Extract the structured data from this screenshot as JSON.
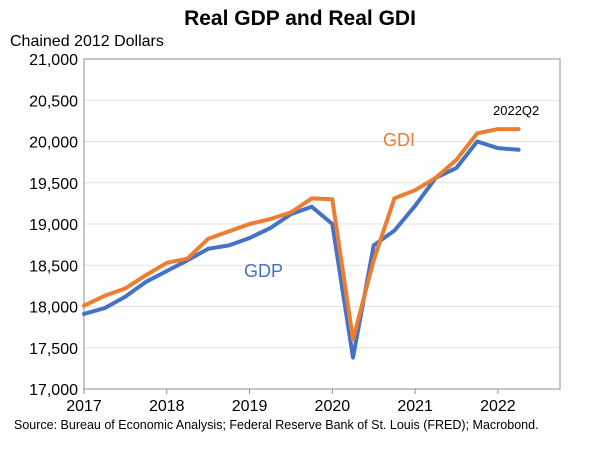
{
  "chart_data": {
    "type": "line",
    "title": "Real GDP and Real GDI",
    "ylabel": "Chained 2012 Dollars",
    "xlabel": "",
    "ylim": [
      17000,
      21000
    ],
    "xlim": [
      2017,
      2022.75
    ],
    "yticks": [
      "17,000",
      "17,500",
      "18,000",
      "18,500",
      "19,000",
      "19,500",
      "20,000",
      "20,500",
      "21,000"
    ],
    "xticks": [
      "2017",
      "2018",
      "2019",
      "2020",
      "2021",
      "2022"
    ],
    "grid": "horizontal",
    "x": [
      "2017Q1",
      "2017Q2",
      "2017Q3",
      "2017Q4",
      "2018Q1",
      "2018Q2",
      "2018Q3",
      "2018Q4",
      "2019Q1",
      "2019Q2",
      "2019Q3",
      "2019Q4",
      "2020Q1",
      "2020Q2",
      "2020Q3",
      "2020Q4",
      "2021Q1",
      "2021Q2",
      "2021Q3",
      "2021Q4",
      "2022Q1",
      "2022Q2"
    ],
    "series": [
      {
        "name": "GDP",
        "color": "#4472C4",
        "values": [
          17910,
          17980,
          18120,
          18300,
          18430,
          18560,
          18700,
          18740,
          18830,
          18950,
          19120,
          19210,
          19000,
          17380,
          18740,
          18920,
          19220,
          19560,
          19680,
          20000,
          19920,
          19900
        ]
      },
      {
        "name": "GDI",
        "color": "#ED7D31",
        "values": [
          18010,
          18130,
          18220,
          18380,
          18530,
          18580,
          18820,
          18910,
          19000,
          19060,
          19140,
          19310,
          19300,
          17600,
          18560,
          19310,
          19410,
          19560,
          19780,
          20100,
          20150,
          20150
        ]
      }
    ],
    "annotations": [
      "2022Q2"
    ]
  },
  "source_note": "Source: Bureau of Economic Analysis; Federal Reserve Bank of St. Louis (FRED); Macrobond."
}
